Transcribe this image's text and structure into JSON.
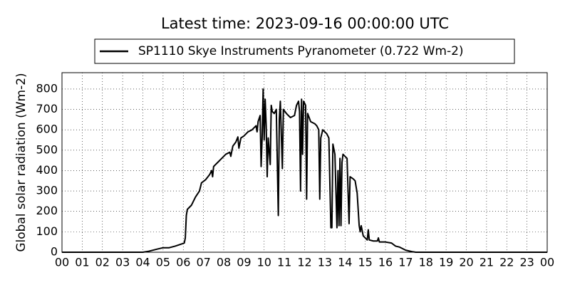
{
  "chart_data": {
    "type": "line",
    "title": "Latest time: 2023-09-16 00:00:00 UTC",
    "y_label": "Global solar radiation (Wm-2)",
    "legend": "upper center",
    "grid": true,
    "x": [
      0,
      4,
      4.3,
      4.7,
      5.0,
      5.3,
      5.6,
      5.9,
      6.05,
      6.1,
      6.15,
      6.2,
      6.4,
      6.6,
      6.8,
      6.9,
      7.1,
      7.3,
      7.4,
      7.45,
      7.5,
      7.7,
      7.9,
      8.1,
      8.3,
      8.35,
      8.45,
      8.6,
      8.7,
      8.75,
      8.85,
      9.0,
      9.2,
      9.4,
      9.6,
      9.65,
      9.7,
      9.8,
      9.85,
      9.9,
      9.95,
      10.0,
      10.05,
      10.1,
      10.15,
      10.2,
      10.3,
      10.35,
      10.4,
      10.5,
      10.6,
      10.7,
      10.75,
      10.8,
      10.9,
      10.95,
      11.1,
      11.3,
      11.5,
      11.6,
      11.7,
      11.75,
      11.8,
      11.85,
      11.9,
      11.95,
      12.05,
      12.1,
      12.15,
      12.3,
      12.5,
      12.6,
      12.7,
      12.75,
      12.8,
      12.9,
      13.1,
      13.2,
      13.3,
      13.35,
      13.4,
      13.5,
      13.6,
      13.65,
      13.7,
      13.75,
      13.8,
      13.85,
      13.9,
      14.0,
      14.1,
      14.2,
      14.25,
      14.4,
      14.5,
      14.6,
      14.7,
      14.75,
      14.8,
      14.9,
      15.0,
      15.1,
      15.15,
      15.2,
      15.4,
      15.6,
      15.65,
      15.7,
      16.0,
      16.3,
      16.5,
      16.7,
      17.0,
      17.3,
      17.5,
      24
    ],
    "series": [
      {
        "name": "SP1110 Skye Instruments Pyranometer (0.722 Wm-2)",
        "color": "#000000",
        "values": [
          0,
          0,
          5,
          15,
          22,
          22,
          30,
          40,
          45,
          70,
          180,
          210,
          230,
          270,
          300,
          340,
          355,
          380,
          400,
          370,
          420,
          440,
          460,
          480,
          490,
          470,
          520,
          540,
          565,
          510,
          560,
          570,
          590,
          600,
          620,
          590,
          640,
          670,
          420,
          560,
          800,
          550,
          750,
          620,
          370,
          560,
          430,
          720,
          690,
          680,
          700,
          180,
          650,
          740,
          410,
          700,
          680,
          660,
          670,
          720,
          740,
          690,
          300,
          750,
          480,
          740,
          720,
          260,
          680,
          640,
          630,
          620,
          600,
          260,
          560,
          600,
          580,
          560,
          120,
          120,
          530,
          480,
          120,
          400,
          130,
          460,
          130,
          440,
          480,
          470,
          460,
          140,
          370,
          360,
          350,
          290,
          130,
          100,
          130,
          80,
          70,
          60,
          110,
          60,
          55,
          55,
          70,
          50,
          50,
          45,
          30,
          25,
          10,
          3,
          0,
          0
        ]
      }
    ],
    "xlim": [
      0,
      24
    ],
    "xticks": [
      {
        "value": 0,
        "label": "00"
      },
      {
        "value": 1,
        "label": "01"
      },
      {
        "value": 2,
        "label": "02"
      },
      {
        "value": 3,
        "label": "03"
      },
      {
        "value": 4,
        "label": "04"
      },
      {
        "value": 5,
        "label": "05"
      },
      {
        "value": 6,
        "label": "06"
      },
      {
        "value": 7,
        "label": "07"
      },
      {
        "value": 8,
        "label": "08"
      },
      {
        "value": 9,
        "label": "09"
      },
      {
        "value": 10,
        "label": "10"
      },
      {
        "value": 11,
        "label": "11"
      },
      {
        "value": 12,
        "label": "12"
      },
      {
        "value": 13,
        "label": "13"
      },
      {
        "value": 14,
        "label": "14"
      },
      {
        "value": 15,
        "label": "15"
      },
      {
        "value": 16,
        "label": "16"
      },
      {
        "value": 17,
        "label": "17"
      },
      {
        "value": 18,
        "label": "18"
      },
      {
        "value": 19,
        "label": "19"
      },
      {
        "value": 20,
        "label": "20"
      },
      {
        "value": 21,
        "label": "21"
      },
      {
        "value": 22,
        "label": "22"
      },
      {
        "value": 23,
        "label": "23"
      },
      {
        "value": 24,
        "label": "00"
      }
    ],
    "ylim": [
      0,
      880
    ],
    "yticks": [
      0,
      100,
      200,
      300,
      400,
      500,
      600,
      700,
      800
    ]
  }
}
